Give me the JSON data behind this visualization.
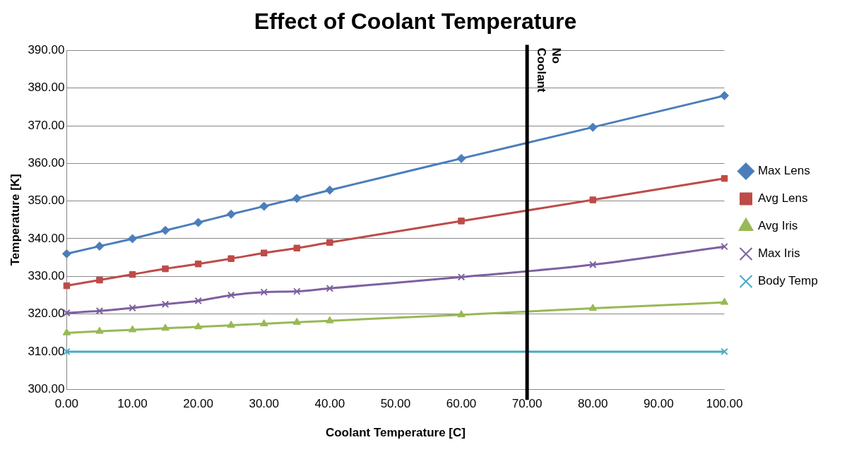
{
  "chart_data": {
    "type": "line",
    "title": "Effect of Coolant Temperature",
    "xlabel": "Coolant Temperature [C]",
    "ylabel": "Temperature [K]",
    "xlim": [
      0,
      100
    ],
    "xticks": [
      {
        "value": 0,
        "label": "0.00"
      },
      {
        "value": 10,
        "label": "10.00"
      },
      {
        "value": 20,
        "label": "20.00"
      },
      {
        "value": 30,
        "label": "30.00"
      },
      {
        "value": 40,
        "label": "40.00"
      },
      {
        "value": 50,
        "label": "50.00"
      },
      {
        "value": 60,
        "label": "60.00"
      },
      {
        "value": 70,
        "label": "70.00"
      },
      {
        "value": 80,
        "label": "80.00"
      },
      {
        "value": 90,
        "label": "90.00"
      },
      {
        "value": 100,
        "label": "100.00"
      }
    ],
    "ylim": [
      300,
      390
    ],
    "yticks": [
      {
        "value": 300,
        "label": "300.00"
      },
      {
        "value": 310,
        "label": "310.00"
      },
      {
        "value": 320,
        "label": "320.00"
      },
      {
        "value": 330,
        "label": "330.00"
      },
      {
        "value": 340,
        "label": "340.00"
      },
      {
        "value": 350,
        "label": "350.00"
      },
      {
        "value": 360,
        "label": "360.00"
      },
      {
        "value": 370,
        "label": "370.00"
      },
      {
        "value": 380,
        "label": "380.00"
      },
      {
        "value": 390,
        "label": "390.00"
      }
    ],
    "x": [
      0,
      5,
      10,
      15,
      20,
      25,
      30,
      35,
      40,
      60,
      80,
      100
    ],
    "series": [
      {
        "name": "Max Lens",
        "color": "#4a7ebb",
        "marker": "diamond",
        "values": [
          336,
          338,
          340,
          342.2,
          344.3,
          346.5,
          348.6,
          350.7,
          352.9,
          361.3,
          369.6,
          378
        ]
      },
      {
        "name": "Avg Lens",
        "color": "#be4b48",
        "marker": "square",
        "values": [
          327.5,
          329,
          330.5,
          332,
          333.3,
          334.7,
          336.2,
          337.5,
          339,
          344.7,
          350.3,
          356
        ]
      },
      {
        "name": "Avg Iris",
        "color": "#98b954",
        "marker": "triangle",
        "values": [
          315,
          315.4,
          315.8,
          316.2,
          316.6,
          317,
          317.4,
          317.8,
          318.2,
          319.8,
          321.5,
          323.1
        ]
      },
      {
        "name": "Max Iris",
        "color": "#7d60a0",
        "marker": "cross",
        "values": [
          320.3,
          320.8,
          321.6,
          322.6,
          323.5,
          325,
          325.8,
          326,
          326.8,
          329.8,
          333.1,
          337.9
        ]
      },
      {
        "name": "Body Temp",
        "color": "#46aac5",
        "marker": "cross",
        "x": [
          0,
          100
        ],
        "values": [
          310,
          310
        ]
      }
    ],
    "ref_lines": [
      {
        "axis": "x",
        "value": 70,
        "label": "No Coolant",
        "color": "#000000"
      }
    ],
    "grid": "y",
    "legend": "right"
  }
}
